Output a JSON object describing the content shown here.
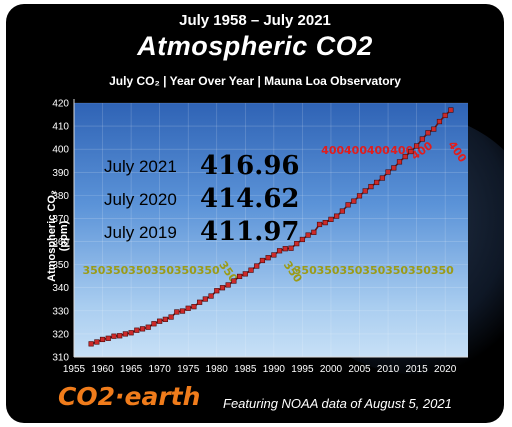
{
  "header": {
    "subtitle": "July 1958 – July 2021",
    "title": "Atmospheric CO2",
    "info": "July CO₂  | Year Over Year  | Mauna Loa Observatory"
  },
  "footer": {
    "logo": "CO2·earth",
    "note": "Featuring NOAA data of August 5, 2021"
  },
  "colors": {
    "background": "#000000",
    "plot_top": "#2f63b5",
    "plot_bottom": "#c7e0f6",
    "series_line": "#6b1010",
    "series_marker": "#cc2a2a",
    "label_350": "#9b9b17",
    "label_400": "#e01d1d",
    "logo": "#f07c1b"
  },
  "chart_data": {
    "type": "line",
    "title": "Atmospheric CO2",
    "subtitle": "July 1958 – July 2021",
    "ylabel": "Atmospheric CO₂ (ppm)",
    "xlabel": "",
    "xlim": [
      1955,
      2024
    ],
    "ylim": [
      310,
      420
    ],
    "xticks": [
      1955,
      1960,
      1965,
      1970,
      1975,
      1980,
      1985,
      1990,
      1995,
      2000,
      2005,
      2010,
      2015,
      2020
    ],
    "yticks": [
      310,
      320,
      330,
      340,
      350,
      360,
      370,
      380,
      390,
      400,
      410,
      420
    ],
    "grid": true,
    "series": [
      {
        "name": "July CO2",
        "x": [
          1958,
          1959,
          1960,
          1961,
          1962,
          1963,
          1964,
          1965,
          1966,
          1967,
          1968,
          1969,
          1970,
          1971,
          1972,
          1973,
          1974,
          1975,
          1976,
          1977,
          1978,
          1979,
          1980,
          1981,
          1982,
          1983,
          1984,
          1985,
          1986,
          1987,
          1988,
          1989,
          1990,
          1991,
          1992,
          1993,
          1994,
          1995,
          1996,
          1997,
          1998,
          1999,
          2000,
          2001,
          2002,
          2003,
          2004,
          2005,
          2006,
          2007,
          2008,
          2009,
          2010,
          2011,
          2012,
          2013,
          2014,
          2015,
          2016,
          2017,
          2018,
          2019,
          2020,
          2021
        ],
        "values": [
          315.7,
          316.5,
          317.6,
          318.1,
          319.0,
          319.2,
          320.0,
          320.5,
          321.6,
          322.2,
          322.9,
          324.4,
          325.5,
          326.3,
          327.3,
          329.5,
          329.9,
          331.1,
          331.8,
          333.7,
          335.1,
          336.4,
          338.7,
          340.0,
          341.2,
          342.9,
          344.9,
          346.0,
          347.6,
          349.4,
          351.8,
          353.0,
          354.2,
          356.0,
          356.9,
          357.1,
          359.1,
          360.9,
          362.8,
          364.0,
          367.4,
          368.2,
          369.6,
          371.0,
          373.2,
          375.9,
          377.5,
          379.8,
          381.9,
          383.8,
          385.6,
          387.5,
          390.1,
          391.9,
          394.5,
          396.8,
          399.0,
          401.4,
          404.4,
          407.1,
          408.7,
          411.97,
          414.62,
          416.96
        ]
      }
    ],
    "annotations": {
      "highlights": [
        {
          "label": "July 2021",
          "value": "416.96"
        },
        {
          "label": "July 2020",
          "value": "414.62"
        },
        {
          "label": "July 2019",
          "value": "411.97"
        }
      ],
      "milestone_350": [
        {
          "x": 1958.5,
          "text": "350"
        },
        {
          "x": 1962.5,
          "text": "350"
        },
        {
          "x": 1966.5,
          "text": "350"
        },
        {
          "x": 1970.5,
          "text": "350"
        },
        {
          "x": 1974.5,
          "text": "350"
        },
        {
          "x": 1978.5,
          "text": "350"
        },
        {
          "x": 1981.5,
          "text": "350",
          "rotate": 55
        },
        {
          "x": 1992.8,
          "text": "350",
          "rotate": 55
        },
        {
          "x": 1995.5,
          "text": "350"
        },
        {
          "x": 1999.5,
          "text": "350"
        },
        {
          "x": 2003.5,
          "text": "350"
        },
        {
          "x": 2007.5,
          "text": "350"
        },
        {
          "x": 2011.5,
          "text": "350"
        },
        {
          "x": 2015.5,
          "text": "350"
        },
        {
          "x": 2019.5,
          "text": "350"
        }
      ],
      "milestone_400": [
        {
          "x": 2000.3,
          "text": "400"
        },
        {
          "x": 2004.3,
          "text": "400"
        },
        {
          "x": 2008.3,
          "text": "400"
        },
        {
          "x": 2012.4,
          "text": "400"
        },
        {
          "x": 2016.3,
          "text": "400",
          "rotate": -35
        },
        {
          "x": 2021.6,
          "text": "400",
          "rotate": 55
        }
      ]
    }
  }
}
